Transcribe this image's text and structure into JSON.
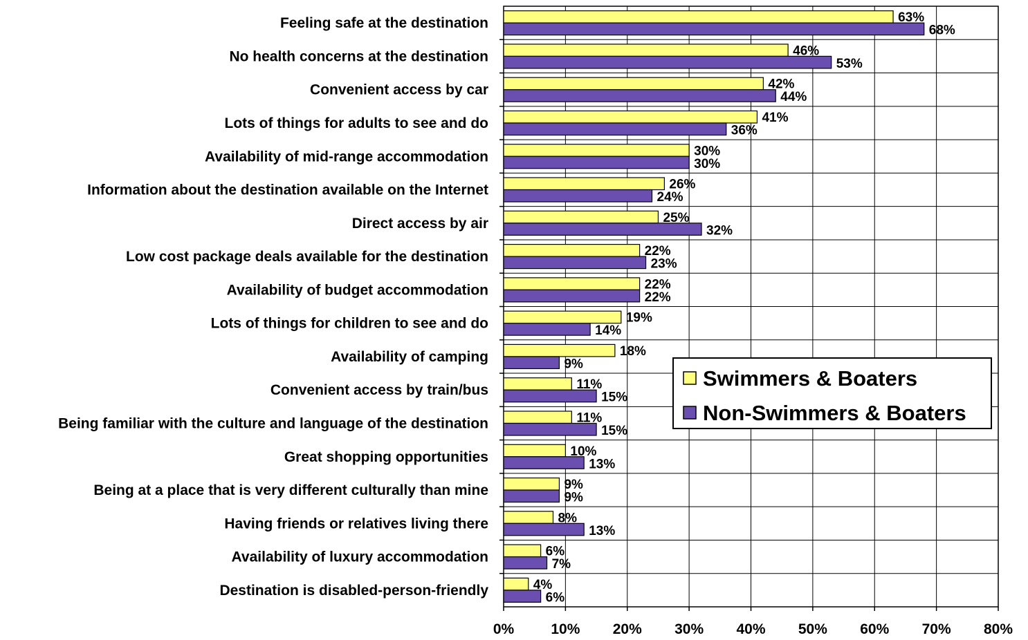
{
  "colors": {
    "series_1": "#ffff80",
    "series_2": "#6a4fb0",
    "grid": "#000000",
    "background": "#ffffff"
  },
  "chart_data": {
    "type": "bar",
    "orientation": "horizontal",
    "categories": [
      "Feeling safe at the destination",
      "No health concerns at the destination",
      "Convenient access by car",
      "Lots of things for adults to see and do",
      "Availability of mid-range accommodation",
      "Information about the destination available on the Internet",
      "Direct access by air",
      "Low cost package deals available for the destination",
      "Availability of budget accommodation",
      "Lots of things for children to see and do",
      "Availability of camping",
      "Convenient access by train/bus",
      "Being familiar with the culture and language of the destination",
      "Great shopping opportunities",
      "Being at a place that is very different culturally than mine",
      "Having friends or relatives living there",
      "Availability of luxury accommodation",
      "Destination is disabled-person-friendly"
    ],
    "series": [
      {
        "name": "Swimmers & Boaters",
        "values": [
          63,
          46,
          42,
          41,
          30,
          26,
          25,
          22,
          22,
          19,
          18,
          11,
          11,
          10,
          9,
          8,
          6,
          4
        ],
        "labels": [
          "63%",
          "46%",
          "42%",
          "41%",
          "30%",
          "26%",
          "25%",
          "22%",
          "22%",
          "19%",
          "18%",
          "11%",
          "11%",
          "10%",
          "9%",
          "8%",
          "6%",
          "4%"
        ]
      },
      {
        "name": "Non-Swimmers & Boaters",
        "values": [
          68,
          53,
          44,
          36,
          30,
          24,
          32,
          23,
          22,
          14,
          9,
          15,
          15,
          13,
          9,
          13,
          7,
          6
        ],
        "labels": [
          "68%",
          "53%",
          "44%",
          "36%",
          "30%",
          "24%",
          "32%",
          "23%",
          "22%",
          "14%",
          "9%",
          "15%",
          "15%",
          "13%",
          "9%",
          "13%",
          "7%",
          "6%"
        ]
      }
    ],
    "xlim": [
      0,
      80
    ],
    "xticks": [
      "0%",
      "10%",
      "20%",
      "30%",
      "40%",
      "50%",
      "60%",
      "70%",
      "80%"
    ],
    "grid": true,
    "legend_position": "right"
  }
}
